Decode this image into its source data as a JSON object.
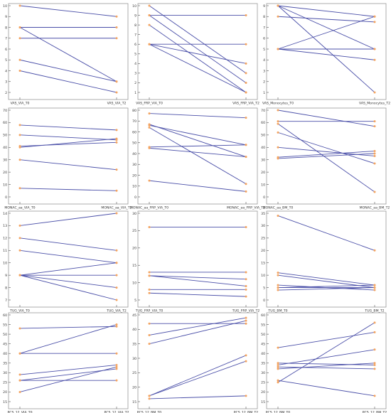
{
  "colors": {
    "line": "#4a4fa8",
    "marker": "#f4a460",
    "axis": "#000000",
    "bg": "#ffffff"
  },
  "chart_data": [
    {
      "type": "line",
      "categories": [
        "VAS_VIA_T0",
        "VAS_VIA_T2"
      ],
      "yticks": [
        2,
        3,
        4,
        5,
        6,
        7,
        8,
        9,
        10
      ],
      "ylim": [
        2,
        10
      ],
      "grid": false,
      "series": [
        {
          "values": [
            10,
            9
          ]
        },
        {
          "values": [
            8,
            8
          ]
        },
        {
          "values": [
            8,
            3
          ]
        },
        {
          "values": [
            7,
            7
          ]
        },
        {
          "values": [
            5,
            3
          ]
        },
        {
          "values": [
            4,
            2
          ]
        }
      ]
    },
    {
      "type": "line",
      "categories": [
        "VAS_FRP_VIA_T0",
        "VAS_FRP_VIA_T2"
      ],
      "yticks": [
        1,
        2,
        3,
        4,
        5,
        6,
        7,
        8,
        9,
        10
      ],
      "ylim": [
        1,
        10
      ],
      "grid": false,
      "series": [
        {
          "values": [
            10,
            3
          ]
        },
        {
          "values": [
            9,
            9
          ]
        },
        {
          "values": [
            9,
            2
          ]
        },
        {
          "values": [
            8,
            1
          ]
        },
        {
          "values": [
            6,
            6
          ]
        },
        {
          "values": [
            6,
            4
          ]
        },
        {
          "values": [
            6,
            1
          ]
        }
      ]
    },
    {
      "type": "line",
      "categories": [
        "VAS_Monocytes_T0",
        "VAS_Monocytes_T2"
      ],
      "yticks": [
        1,
        2,
        3,
        4,
        5,
        6,
        7,
        8,
        9
      ],
      "ylim": [
        1,
        9
      ],
      "grid": false,
      "series": [
        {
          "values": [
            9,
            8
          ]
        },
        {
          "values": [
            9,
            5
          ]
        },
        {
          "values": [
            9,
            1
          ]
        },
        {
          "values": [
            8,
            7.5
          ]
        },
        {
          "values": [
            5,
            8
          ]
        },
        {
          "values": [
            5,
            5
          ]
        },
        {
          "values": [
            5,
            4
          ]
        }
      ]
    },
    {
      "type": "line",
      "categories": [
        "MONAC_aa_VIA_T0",
        "MONAC_aa_VIA_T2"
      ],
      "yticks": [
        0,
        10,
        20,
        30,
        40,
        50,
        60,
        70
      ],
      "ylim": [
        0,
        70
      ],
      "grid": false,
      "series": [
        {
          "values": [
            58,
            54
          ]
        },
        {
          "values": [
            50,
            46
          ]
        },
        {
          "values": [
            41,
            44
          ]
        },
        {
          "values": [
            40,
            47
          ]
        },
        {
          "values": [
            30,
            22
          ]
        },
        {
          "values": [
            7,
            5
          ]
        }
      ]
    },
    {
      "type": "line",
      "categories": [
        "MONAC_aa_FRP_VIA_T0",
        "MONAC_aa_FRP_VIA_T2"
      ],
      "yticks": [
        0,
        10,
        20,
        30,
        40,
        50,
        60,
        70,
        80
      ],
      "ylim": [
        0,
        80
      ],
      "grid": false,
      "series": [
        {
          "values": [
            77,
            73
          ]
        },
        {
          "values": [
            67,
            37
          ]
        },
        {
          "values": [
            66,
            48
          ]
        },
        {
          "values": [
            64,
            12
          ]
        },
        {
          "values": [
            46,
            48
          ]
        },
        {
          "values": [
            45,
            37
          ]
        },
        {
          "values": [
            15,
            5
          ]
        }
      ]
    },
    {
      "type": "line",
      "categories": [
        "MONAC_aa_BM_T0",
        "MONAC_aa_BM_T2"
      ],
      "yticks": [
        0,
        10,
        20,
        30,
        40,
        50,
        60,
        70
      ],
      "ylim": [
        0,
        70
      ],
      "grid": false,
      "series": [
        {
          "values": [
            70,
            57
          ]
        },
        {
          "values": [
            61,
            61
          ]
        },
        {
          "values": [
            59,
            4
          ]
        },
        {
          "values": [
            52,
            27
          ]
        },
        {
          "values": [
            40,
            33
          ]
        },
        {
          "values": [
            32,
            37
          ]
        },
        {
          "values": [
            31,
            35
          ]
        }
      ]
    },
    {
      "type": "line",
      "categories": [
        "TUG_VIA_T0",
        "TUG_VIA_T2"
      ],
      "yticks": [
        7,
        8,
        9,
        10,
        11,
        12,
        13,
        14
      ],
      "ylim": [
        7,
        14
      ],
      "grid": false,
      "series": [
        {
          "values": [
            13,
            14
          ]
        },
        {
          "values": [
            12,
            11
          ]
        },
        {
          "values": [
            11,
            10
          ]
        },
        {
          "values": [
            9,
            10
          ]
        },
        {
          "values": [
            9,
            9
          ]
        },
        {
          "values": [
            9,
            8
          ]
        },
        {
          "values": [
            9,
            7
          ]
        }
      ]
    },
    {
      "type": "line",
      "categories": [
        "TUG_FRP_VIA_T0",
        "TUG_FRP_VIA_T2"
      ],
      "yticks": [
        5,
        10,
        15,
        20,
        25,
        30
      ],
      "ylim": [
        5,
        30
      ],
      "grid": false,
      "series": [
        {
          "values": [
            26,
            26
          ]
        },
        {
          "values": [
            13,
            13
          ]
        },
        {
          "values": [
            12,
            11
          ]
        },
        {
          "values": [
            12,
            9
          ]
        },
        {
          "values": [
            8,
            8
          ]
        },
        {
          "values": [
            7,
            6
          ]
        }
      ]
    },
    {
      "type": "line",
      "categories": [
        "TUG_BM_T0",
        "TUG_BM_T2"
      ],
      "yticks": [
        0,
        5,
        10,
        15,
        20,
        25,
        30,
        35
      ],
      "ylim": [
        0,
        35
      ],
      "grid": false,
      "series": [
        {
          "values": [
            34,
            20
          ]
        },
        {
          "values": [
            11,
            6
          ]
        },
        {
          "values": [
            10,
            5
          ]
        },
        {
          "values": [
            6,
            4
          ]
        },
        {
          "values": [
            5,
            6
          ]
        },
        {
          "values": [
            5,
            5
          ]
        },
        {
          "values": [
            4,
            5
          ]
        }
      ]
    },
    {
      "type": "line",
      "categories": [
        "PCS_12_VIA_T0",
        "PCS_12_VIA_T2"
      ],
      "yticks": [
        15,
        20,
        25,
        30,
        35,
        40,
        45,
        50,
        55,
        60
      ],
      "ylim": [
        15,
        60
      ],
      "grid": false,
      "series": [
        {
          "values": [
            53,
            54
          ]
        },
        {
          "values": [
            40,
            40
          ]
        },
        {
          "values": [
            29,
            34
          ]
        },
        {
          "values": [
            26,
            26
          ]
        },
        {
          "values": [
            26,
            32
          ]
        },
        {
          "values": [
            20,
            33
          ]
        },
        {
          "values": [
            40,
            55
          ]
        }
      ]
    },
    {
      "type": "line",
      "categories": [
        "PCS_12_BM_T0",
        "PCS_12_BM_T2"
      ],
      "yticks": [
        15,
        20,
        25,
        30,
        35,
        40,
        45
      ],
      "ylim": [
        15,
        45
      ],
      "grid": false,
      "series": [
        {
          "values": [
            42,
            42
          ]
        },
        {
          "values": [
            38,
            44
          ]
        },
        {
          "values": [
            35,
            43
          ]
        },
        {
          "values": [
            17,
            31
          ]
        },
        {
          "values": [
            17,
            29
          ]
        },
        {
          "values": [
            16,
            17
          ]
        }
      ]
    },
    {
      "type": "line",
      "categories": [
        "PCS_12_BM_T0",
        "PCS_12_BM_T2"
      ],
      "yticks": [
        15,
        20,
        25,
        30,
        35,
        40,
        45,
        50,
        55,
        60
      ],
      "ylim": [
        15,
        60
      ],
      "grid": false,
      "series": [
        {
          "values": [
            43,
            51
          ]
        },
        {
          "values": [
            35,
            34
          ]
        },
        {
          "values": [
            34,
            42
          ]
        },
        {
          "values": [
            33,
            32
          ]
        },
        {
          "values": [
            32,
            35
          ]
        },
        {
          "values": [
            26,
            18
          ]
        },
        {
          "values": [
            25,
            56
          ]
        }
      ]
    }
  ]
}
